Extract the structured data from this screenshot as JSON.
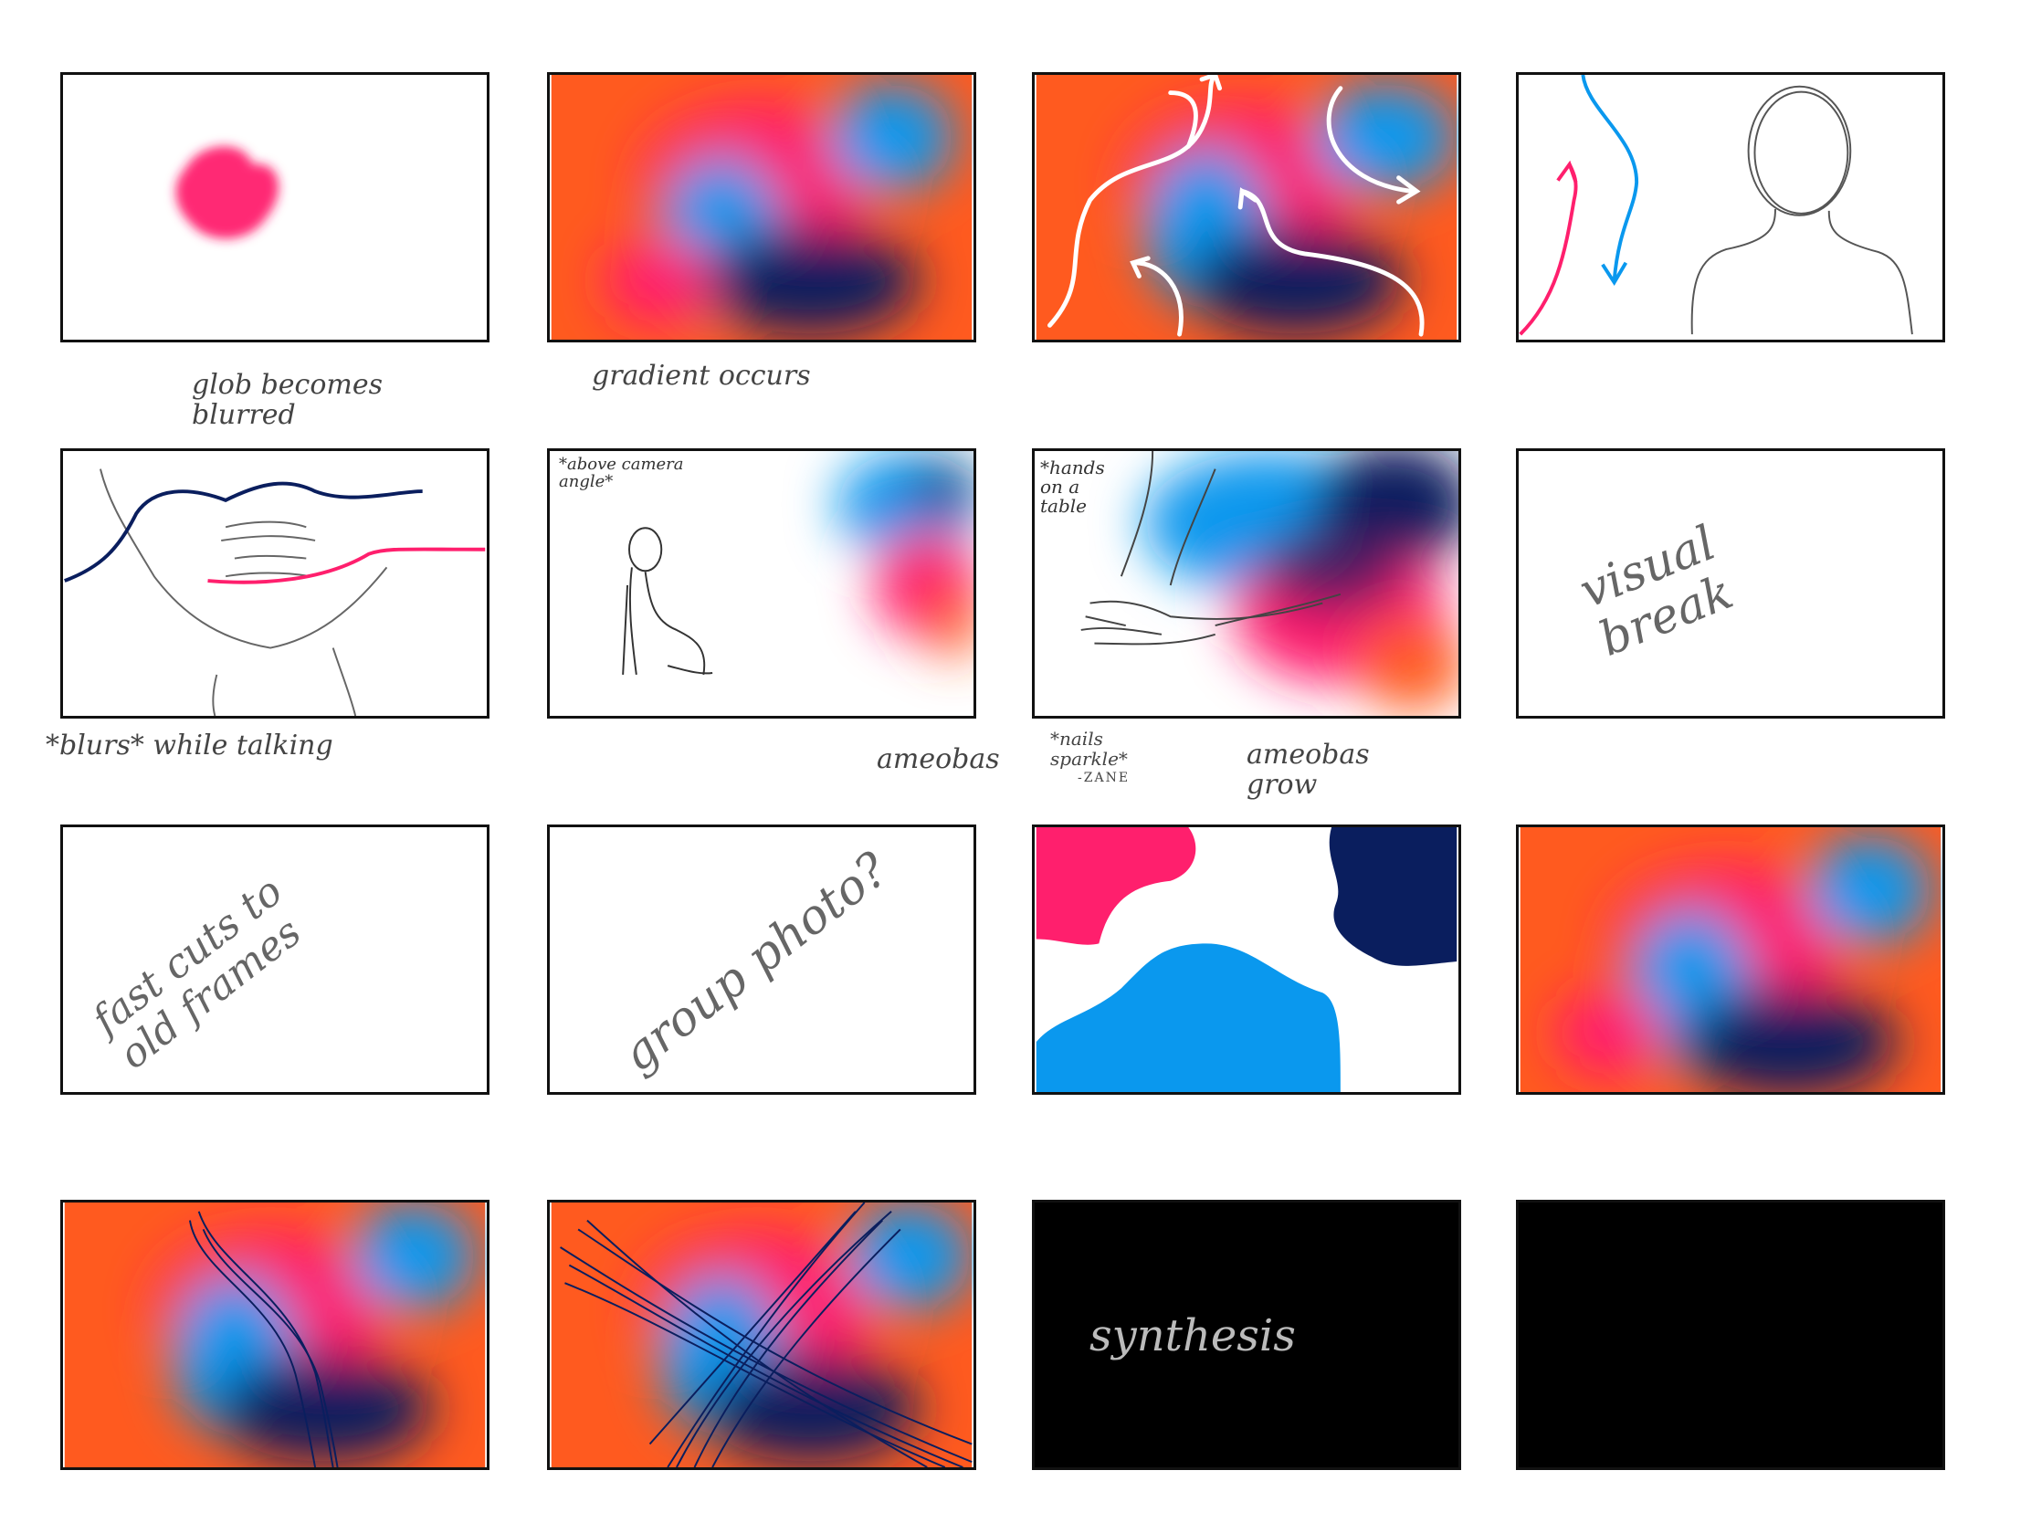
{
  "colors": {
    "orange": "#ff5a1f",
    "pink": "#ff1f6d",
    "blue": "#0a98ee",
    "navy": "#0a1e5e",
    "black": "#000000",
    "white": "#ffffff"
  },
  "panels": [
    {
      "id": "p1",
      "caption": "glob becomes blurred"
    },
    {
      "id": "p2",
      "caption": "gradient occurs"
    },
    {
      "id": "p3",
      "caption": ""
    },
    {
      "id": "p4",
      "caption": ""
    },
    {
      "id": "p5",
      "caption": "*blurs* while talking"
    },
    {
      "id": "p6",
      "inner_note": "*above camera angle*",
      "caption": "ameobas"
    },
    {
      "id": "p7",
      "inner_note": "*hands on a table",
      "caption_a": "*nails sparkle*",
      "caption_b": "-ZANE",
      "caption": "ameobas grow"
    },
    {
      "id": "p8",
      "inner_text": "visual break"
    },
    {
      "id": "p9",
      "inner_text": "fast cuts to old frames"
    },
    {
      "id": "p10",
      "inner_text": "group photo?"
    },
    {
      "id": "p11"
    },
    {
      "id": "p12"
    },
    {
      "id": "p13"
    },
    {
      "id": "p14"
    },
    {
      "id": "p15",
      "inner_text": "synthesis"
    },
    {
      "id": "p16"
    }
  ]
}
